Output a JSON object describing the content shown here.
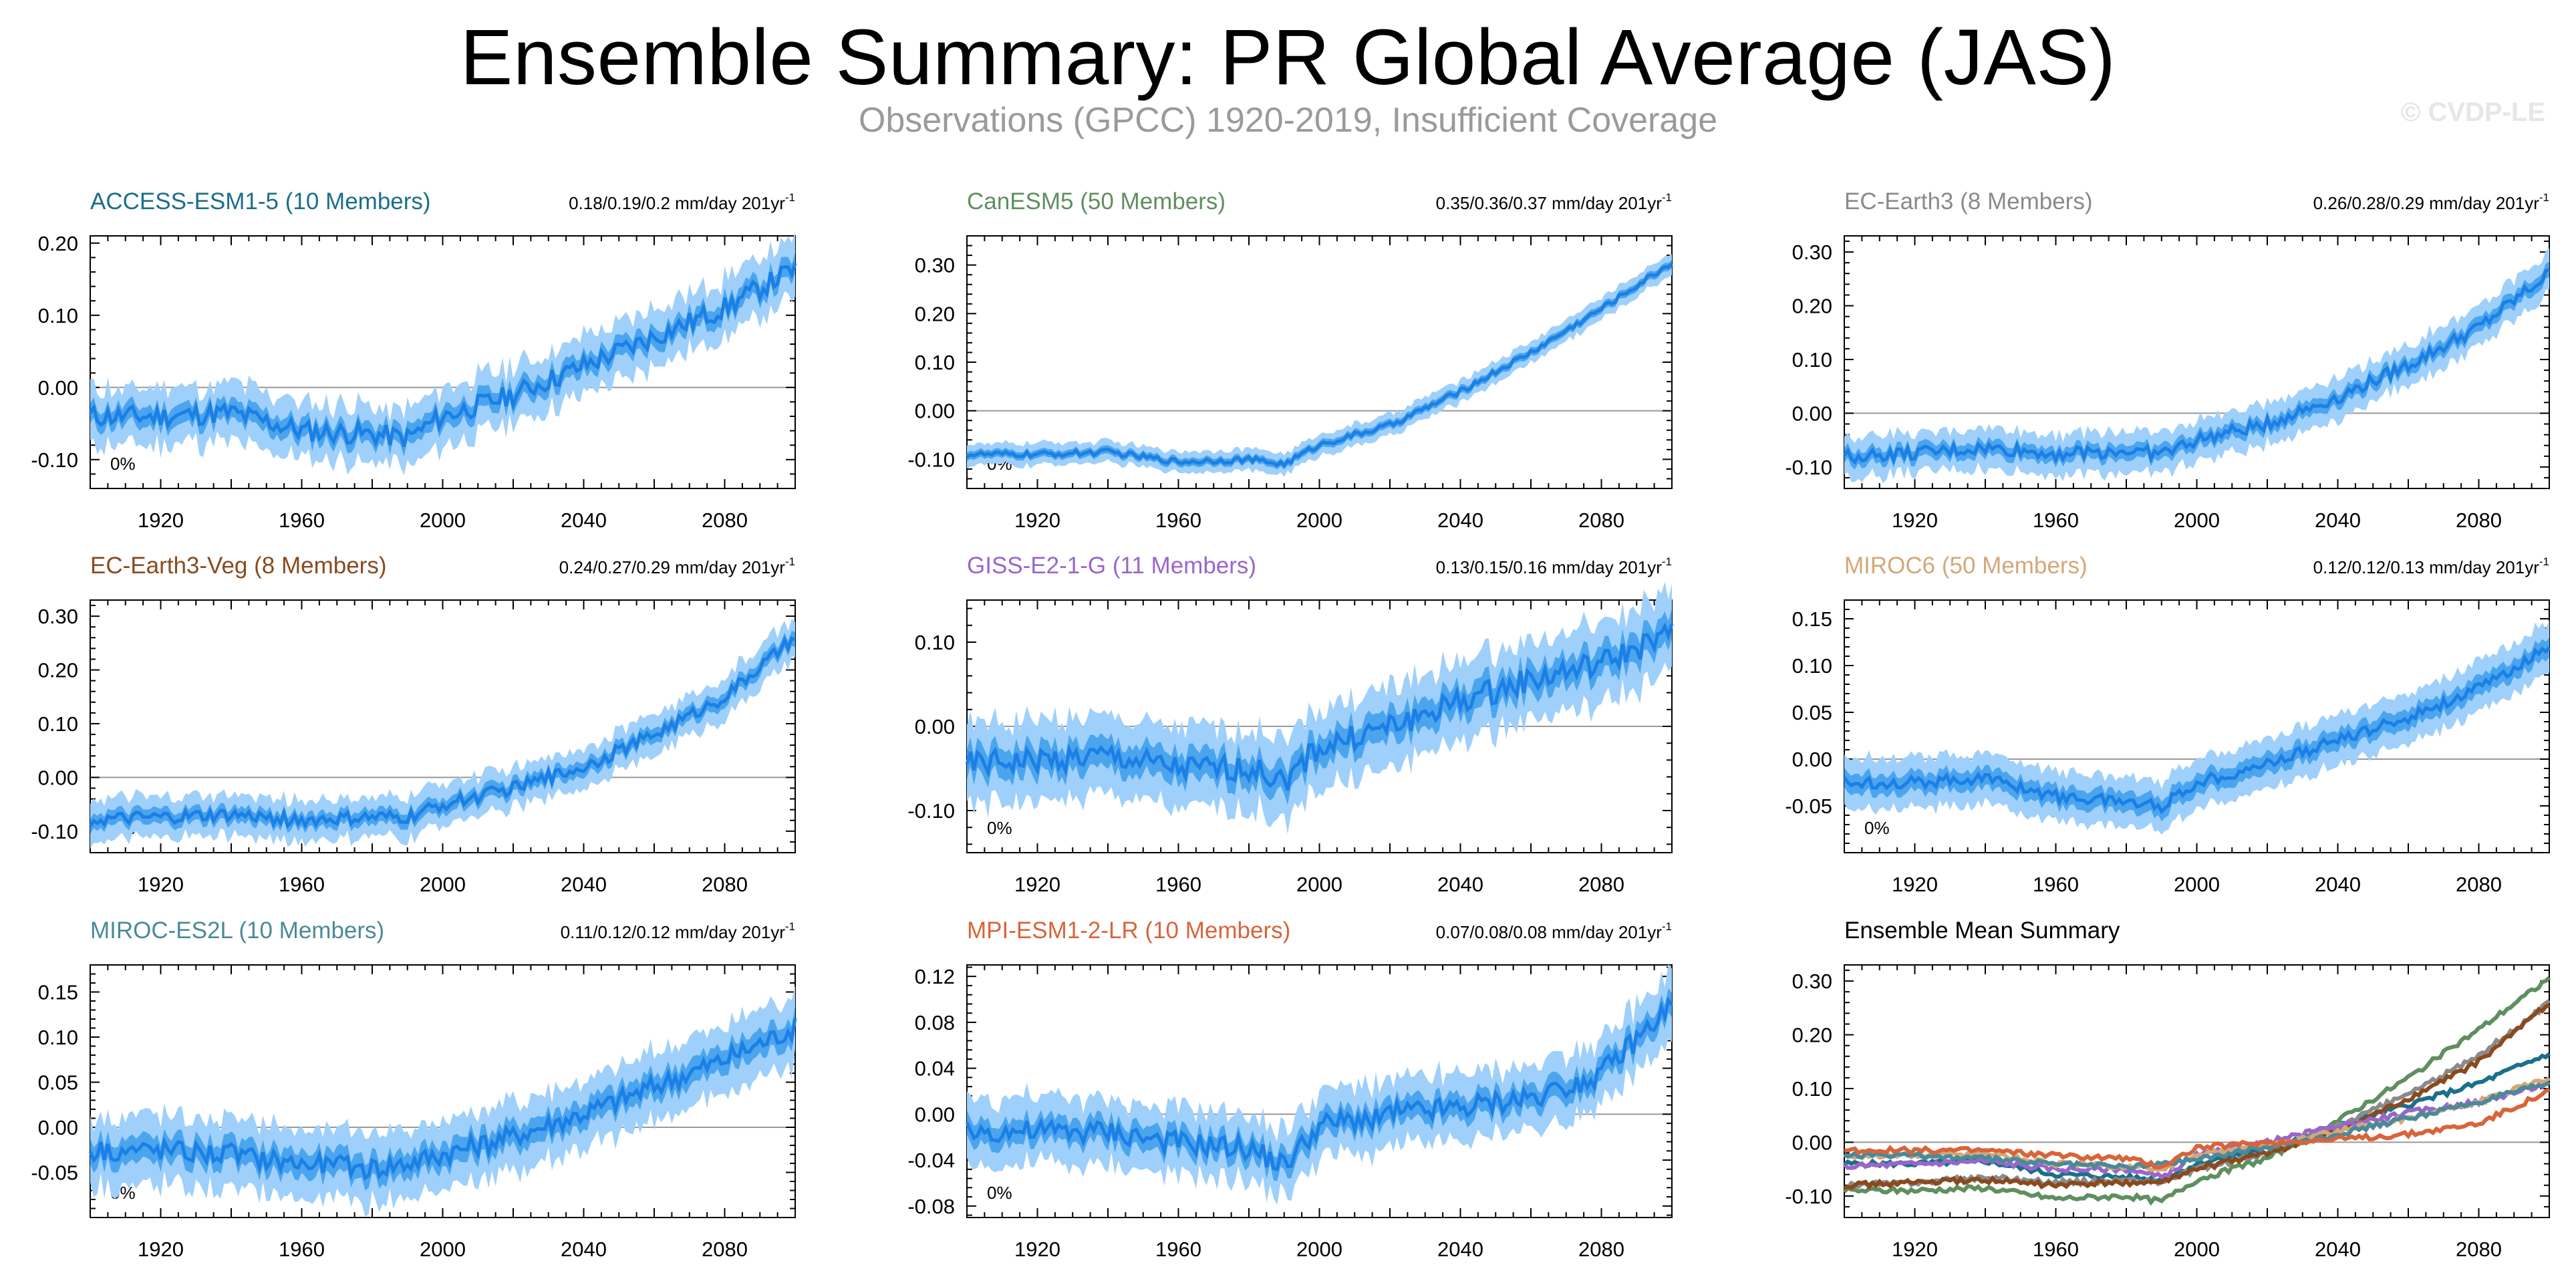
{
  "title": "Ensemble Summary: PR Global Average (JAS)",
  "subtitle": "Observations (GPCC) 1920-2019, Insufficient Coverage",
  "copyright": "© CVDP-LE",
  "chart_data": [
    {
      "type": "area",
      "name": "ACCESS-ESM1-5 (10 Members)",
      "color": "#1a6f8a",
      "trend": "0.18/0.19/0.2 mm/day 201yr",
      "trend_sup": "-1",
      "coverage": "0%",
      "xlim": [
        1900,
        2100
      ],
      "ylim": [
        -0.14,
        0.21
      ],
      "yticks": [
        "0.20",
        "0.10",
        "0.00",
        "-0.10"
      ],
      "ytick_values": [
        0.2,
        0.1,
        0.0,
        -0.1
      ],
      "xticks": [
        "1920",
        "1960",
        "2000",
        "2040",
        "2080"
      ],
      "x": [
        1900,
        1920,
        1940,
        1960,
        1980,
        1990,
        2000,
        2020,
        2040,
        2060,
        2080,
        2100
      ],
      "mean": [
        -0.04,
        -0.04,
        -0.035,
        -0.06,
        -0.065,
        -0.07,
        -0.04,
        -0.01,
        0.03,
        0.07,
        0.11,
        0.165
      ],
      "spread": 0.02,
      "noise": 0.015
    },
    {
      "type": "area",
      "name": "CanESM5 (50 Members)",
      "color": "#5f8f5f",
      "trend": "0.35/0.36/0.37 mm/day 201yr",
      "trend_sup": "-1",
      "coverage": "0%",
      "xlim": [
        1900,
        2100
      ],
      "ylim": [
        -0.16,
        0.36
      ],
      "yticks": [
        "0.30",
        "0.20",
        "0.10",
        "0.00",
        "-0.10"
      ],
      "ytick_values": [
        0.3,
        0.2,
        0.1,
        0.0,
        -0.1
      ],
      "xticks": [
        "1920",
        "1960",
        "2000",
        "2040",
        "2080"
      ],
      "x": [
        1900,
        1920,
        1940,
        1960,
        1980,
        1990,
        2000,
        2020,
        2040,
        2060,
        2080,
        2100
      ],
      "mean": [
        -0.09,
        -0.09,
        -0.085,
        -0.105,
        -0.1,
        -0.11,
        -0.07,
        -0.03,
        0.04,
        0.12,
        0.21,
        0.305
      ],
      "spread": 0.012,
      "noise": 0.006
    },
    {
      "type": "area",
      "name": "EC-Earth3 (8 Members)",
      "color": "#8a8a8a",
      "trend": "0.26/0.28/0.29 mm/day 201yr",
      "trend_sup": "-1",
      "coverage": "0%",
      "xlim": [
        1900,
        2100
      ],
      "ylim": [
        -0.14,
        0.33
      ],
      "yticks": [
        "0.30",
        "0.20",
        "0.10",
        "0.00",
        "-0.10"
      ],
      "ytick_values": [
        0.3,
        0.2,
        0.1,
        0.0,
        -0.1
      ],
      "xticks": [
        "1920",
        "1960",
        "2000",
        "2040",
        "2080"
      ],
      "x": [
        1900,
        1920,
        1940,
        1960,
        1980,
        1990,
        2000,
        2020,
        2040,
        2060,
        2080,
        2100
      ],
      "mean": [
        -0.08,
        -0.075,
        -0.065,
        -0.075,
        -0.07,
        -0.075,
        -0.05,
        -0.02,
        0.03,
        0.09,
        0.16,
        0.26
      ],
      "spread": 0.02,
      "noise": 0.012
    },
    {
      "type": "area",
      "name": "EC-Earth3-Veg (8 Members)",
      "color": "#8a4a1e",
      "trend": "0.24/0.27/0.29 mm/day 201yr",
      "trend_sup": "-1",
      "coverage": "0%",
      "xlim": [
        1900,
        2100
      ],
      "ylim": [
        -0.14,
        0.33
      ],
      "yticks": [
        "0.30",
        "0.20",
        "0.10",
        "0.00",
        "-0.10"
      ],
      "ytick_values": [
        0.3,
        0.2,
        0.1,
        0.0,
        -0.1
      ],
      "xticks": [
        "1920",
        "1960",
        "2000",
        "2040",
        "2080"
      ],
      "x": [
        1900,
        1920,
        1940,
        1960,
        1980,
        1990,
        2000,
        2020,
        2040,
        2060,
        2080,
        2100
      ],
      "mean": [
        -0.08,
        -0.075,
        -0.07,
        -0.08,
        -0.075,
        -0.075,
        -0.05,
        -0.02,
        0.02,
        0.08,
        0.15,
        0.26
      ],
      "spread": 0.02,
      "noise": 0.012
    },
    {
      "type": "area",
      "name": "GISS-E2-1-G (11 Members)",
      "color": "#9966cc",
      "trend": "0.13/0.15/0.16 mm/day 201yr",
      "trend_sup": "-1",
      "coverage": "0%",
      "xlim": [
        1900,
        2100
      ],
      "ylim": [
        -0.15,
        0.15
      ],
      "yticks": [
        "0.10",
        "0.00",
        "-0.10"
      ],
      "ytick_values": [
        0.1,
        0.0,
        -0.1
      ],
      "xticks": [
        "1920",
        "1960",
        "2000",
        "2040",
        "2080"
      ],
      "x": [
        1900,
        1920,
        1940,
        1960,
        1980,
        1990,
        2000,
        2020,
        2040,
        2060,
        2080,
        2100
      ],
      "mean": [
        -0.045,
        -0.04,
        -0.035,
        -0.05,
        -0.05,
        -0.065,
        -0.025,
        0.0,
        0.03,
        0.055,
        0.075,
        0.11
      ],
      "spread": 0.025,
      "noise": 0.015
    },
    {
      "type": "area",
      "name": "MIROC6 (50 Members)",
      "color": "#d2a878",
      "trend": "0.12/0.12/0.13 mm/day 201yr",
      "trend_sup": "-1",
      "coverage": "0%",
      "xlim": [
        1900,
        2100
      ],
      "ylim": [
        -0.1,
        0.17
      ],
      "yticks": [
        "0.15",
        "0.10",
        "0.05",
        "0.00",
        "-0.05"
      ],
      "ytick_values": [
        0.15,
        0.1,
        0.05,
        0.0,
        -0.05
      ],
      "xticks": [
        "1920",
        "1960",
        "2000",
        "2040",
        "2080"
      ],
      "x": [
        1900,
        1920,
        1940,
        1960,
        1980,
        1990,
        2000,
        2020,
        2040,
        2060,
        2080,
        2100
      ],
      "mean": [
        -0.025,
        -0.025,
        -0.02,
        -0.04,
        -0.045,
        -0.05,
        -0.025,
        -0.005,
        0.02,
        0.045,
        0.075,
        0.12
      ],
      "spread": 0.015,
      "noise": 0.006
    },
    {
      "type": "area",
      "name": "MIROC-ES2L (10 Members)",
      "color": "#4a8a9a",
      "trend": "0.11/0.12/0.12 mm/day 201yr",
      "trend_sup": "-1",
      "coverage": "0%",
      "xlim": [
        1900,
        2100
      ],
      "ylim": [
        -0.1,
        0.18
      ],
      "yticks": [
        "0.15",
        "0.10",
        "0.05",
        "0.00",
        "-0.05"
      ],
      "ytick_values": [
        0.15,
        0.1,
        0.05,
        0.0,
        -0.05
      ],
      "xticks": [
        "1920",
        "1960",
        "2000",
        "2040",
        "2080"
      ],
      "x": [
        1900,
        1920,
        1940,
        1960,
        1980,
        1990,
        2000,
        2020,
        2040,
        2060,
        2080,
        2100
      ],
      "mean": [
        -0.025,
        -0.025,
        -0.03,
        -0.04,
        -0.045,
        -0.04,
        -0.03,
        -0.01,
        0.015,
        0.045,
        0.075,
        0.11
      ],
      "spread": 0.02,
      "noise": 0.012
    },
    {
      "type": "area",
      "name": "MPI-ESM1-2-LR (10 Members)",
      "color": "#d9643a",
      "trend": "0.07/0.08/0.08 mm/day 201yr",
      "trend_sup": "-1",
      "coverage": "0%",
      "xlim": [
        1900,
        2100
      ],
      "ylim": [
        -0.09,
        0.13
      ],
      "yticks": [
        "0.12",
        "0.08",
        "0.04",
        "0.00",
        "-0.04",
        "-0.08"
      ],
      "ytick_values": [
        0.12,
        0.08,
        0.04,
        0.0,
        -0.04,
        -0.08
      ],
      "xticks": [
        "1920",
        "1960",
        "2000",
        "2040",
        "2080"
      ],
      "x": [
        1900,
        1920,
        1940,
        1960,
        1980,
        1990,
        2000,
        2020,
        2040,
        2060,
        2080,
        2100
      ],
      "mean": [
        -0.015,
        -0.015,
        -0.015,
        -0.025,
        -0.03,
        -0.045,
        -0.01,
        0.0,
        0.005,
        0.015,
        0.035,
        0.095
      ],
      "spread": 0.015,
      "noise": 0.01
    },
    {
      "type": "line",
      "name": "Ensemble Mean Summary",
      "xlim": [
        1900,
        2100
      ],
      "ylim": [
        -0.14,
        0.33
      ],
      "yticks": [
        "0.30",
        "0.20",
        "0.10",
        "0.00",
        "-0.10"
      ],
      "ytick_values": [
        0.3,
        0.2,
        0.1,
        0.0,
        -0.1
      ],
      "xticks": [
        "1920",
        "1960",
        "2000",
        "2040",
        "2080"
      ],
      "x": [
        1900,
        1920,
        1940,
        1960,
        1980,
        1990,
        2000,
        2020,
        2040,
        2060,
        2080,
        2100
      ],
      "series": [
        {
          "color": "#1a6f8a",
          "values": [
            -0.04,
            -0.04,
            -0.035,
            -0.06,
            -0.065,
            -0.07,
            -0.04,
            -0.01,
            0.03,
            0.07,
            0.11,
            0.165
          ]
        },
        {
          "color": "#5f8f5f",
          "values": [
            -0.09,
            -0.09,
            -0.085,
            -0.105,
            -0.1,
            -0.11,
            -0.07,
            -0.03,
            0.04,
            0.12,
            0.21,
            0.305
          ]
        },
        {
          "color": "#8a8a8a",
          "values": [
            -0.08,
            -0.075,
            -0.065,
            -0.075,
            -0.07,
            -0.075,
            -0.05,
            -0.02,
            0.03,
            0.09,
            0.16,
            0.26
          ]
        },
        {
          "color": "#8a4a1e",
          "values": [
            -0.08,
            -0.075,
            -0.07,
            -0.08,
            -0.075,
            -0.075,
            -0.05,
            -0.02,
            0.02,
            0.08,
            0.15,
            0.26
          ]
        },
        {
          "color": "#9966cc",
          "values": [
            -0.045,
            -0.04,
            -0.035,
            -0.05,
            -0.05,
            -0.065,
            -0.025,
            0.0,
            0.03,
            0.055,
            0.075,
            0.11
          ]
        },
        {
          "color": "#d2a878",
          "values": [
            -0.025,
            -0.025,
            -0.02,
            -0.04,
            -0.045,
            -0.05,
            -0.025,
            -0.005,
            0.02,
            0.045,
            0.075,
            0.12
          ]
        },
        {
          "color": "#4a8a9a",
          "values": [
            -0.025,
            -0.025,
            -0.03,
            -0.04,
            -0.045,
            -0.04,
            -0.03,
            -0.01,
            0.015,
            0.045,
            0.075,
            0.11
          ]
        },
        {
          "color": "#d9643a",
          "values": [
            -0.015,
            -0.015,
            -0.015,
            -0.025,
            -0.03,
            -0.045,
            -0.01,
            0.0,
            0.005,
            0.015,
            0.035,
            0.095
          ]
        }
      ]
    }
  ]
}
